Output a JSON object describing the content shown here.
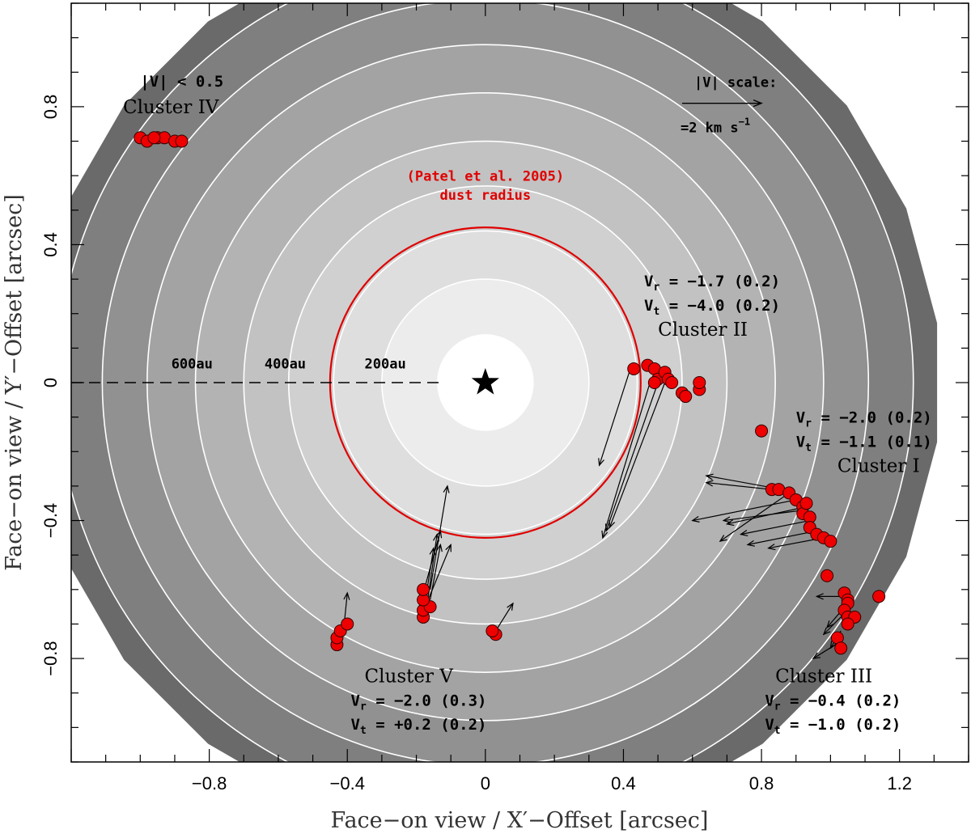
{
  "chart_data": {
    "type": "scatter",
    "xlabel": "Face−on view / X′−Offset  [arcsec]",
    "ylabel": "Face−on view / Y′−Offset  [arcsec]",
    "xlim": [
      -1.2,
      1.4
    ],
    "ylim": [
      1.1,
      -1.1
    ],
    "y_axis_inverted": true,
    "x_ticks": [
      -0.8,
      -0.4,
      0,
      0.4,
      0.8,
      1.2
    ],
    "x_tick_labels": [
      "−0.8",
      "−0.4",
      "0",
      "0.4",
      "0.8",
      "1.2"
    ],
    "y_ticks": [
      -0.8,
      -0.4,
      0,
      0.4,
      0.8
    ],
    "y_tick_labels": [
      "−0.8",
      "−0.4",
      "0",
      "0.4",
      "0.8"
    ],
    "star": {
      "x": 0,
      "y": 0
    },
    "background_rings": {
      "radii": [
        0.14,
        0.3,
        0.44,
        0.57,
        0.7,
        0.84,
        0.98,
        1.11,
        1.24
      ],
      "polygon_radius": 1.32,
      "fills": [
        "#ffffff",
        "#ececec",
        "#dedede",
        "#d0d0d0",
        "#c2c2c2",
        "#b3b3b3",
        "#a3a3a3",
        "#919191",
        "#7f7f7f",
        "#6a6a6a"
      ]
    },
    "dust_ring": {
      "radius": 0.45,
      "color": "#e00000",
      "label_line1": "dust radius",
      "label_line2": "(Patel et al. 2005)"
    },
    "au_marker": {
      "line_from_x": -1.2,
      "line_to_x": -0.13,
      "labels": [
        {
          "text": "600au",
          "x": -0.85,
          "y": 0.055
        },
        {
          "text": "400au",
          "x": -0.58,
          "y": 0.055
        },
        {
          "text": "200au",
          "x": -0.29,
          "y": 0.055
        }
      ]
    },
    "points": [
      [
        0.43,
        0.04
      ],
      [
        0.47,
        0.05
      ],
      [
        0.49,
        0.04
      ],
      [
        0.5,
        0.01
      ],
      [
        0.52,
        0.03
      ],
      [
        0.53,
        0.01
      ],
      [
        0.54,
        0.0
      ],
      [
        0.57,
        -0.03
      ],
      [
        0.58,
        -0.04
      ],
      [
        0.62,
        -0.02
      ],
      [
        0.62,
        0.0
      ],
      [
        0.49,
        0.0
      ],
      [
        0.83,
        -0.31
      ],
      [
        0.85,
        -0.31
      ],
      [
        0.88,
        -0.32
      ],
      [
        0.9,
        -0.34
      ],
      [
        0.92,
        -0.36
      ],
      [
        0.92,
        -0.38
      ],
      [
        0.94,
        -0.39
      ],
      [
        0.94,
        -0.42
      ],
      [
        0.96,
        -0.44
      ],
      [
        0.98,
        -0.45
      ],
      [
        1.0,
        -0.46
      ],
      [
        0.93,
        -0.35
      ],
      [
        0.8,
        -0.14
      ],
      [
        0.99,
        -0.56
      ],
      [
        1.04,
        -0.61
      ],
      [
        1.05,
        -0.63
      ],
      [
        1.05,
        -0.64
      ],
      [
        1.04,
        -0.66
      ],
      [
        1.05,
        -0.68
      ],
      [
        1.07,
        -0.68
      ],
      [
        1.05,
        -0.7
      ],
      [
        1.02,
        -0.74
      ],
      [
        1.03,
        -0.77
      ],
      [
        1.14,
        -0.62
      ],
      [
        -0.43,
        -0.76
      ],
      [
        -0.43,
        -0.74
      ],
      [
        -0.42,
        -0.72
      ],
      [
        -0.4,
        -0.7
      ],
      [
        -0.18,
        -0.68
      ],
      [
        -0.18,
        -0.66
      ],
      [
        -0.16,
        -0.65
      ],
      [
        -0.18,
        -0.63
      ],
      [
        -0.18,
        -0.6
      ],
      [
        0.03,
        -0.73
      ],
      [
        0.02,
        -0.72
      ],
      [
        -1.0,
        0.71
      ],
      [
        -0.98,
        0.7
      ],
      [
        -0.95,
        0.71
      ],
      [
        -0.93,
        0.71
      ],
      [
        -0.9,
        0.7
      ],
      [
        -0.88,
        0.7
      ],
      [
        -0.96,
        0.71
      ]
    ],
    "vectors": [
      [
        0.42,
        0.04,
        0.33,
        -0.24
      ],
      [
        0.48,
        0.01,
        0.34,
        -0.45
      ],
      [
        0.5,
        0.0,
        0.35,
        -0.43
      ],
      [
        0.52,
        0.0,
        0.36,
        -0.42
      ],
      [
        0.83,
        -0.31,
        0.64,
        -0.29
      ],
      [
        0.86,
        -0.31,
        0.64,
        -0.27
      ],
      [
        0.9,
        -0.34,
        0.6,
        -0.4
      ],
      [
        0.92,
        -0.37,
        0.69,
        -0.4
      ],
      [
        0.94,
        -0.4,
        0.74,
        -0.44
      ],
      [
        0.96,
        -0.43,
        0.76,
        -0.47
      ],
      [
        0.98,
        -0.45,
        0.82,
        -0.48
      ],
      [
        0.93,
        -0.36,
        0.7,
        -0.41
      ],
      [
        0.88,
        -0.32,
        0.68,
        -0.46
      ],
      [
        1.04,
        -0.62,
        0.96,
        -0.62
      ],
      [
        1.04,
        -0.67,
        0.98,
        -0.73
      ],
      [
        1.03,
        -0.72,
        1.0,
        -0.77
      ],
      [
        1.03,
        -0.75,
        0.95,
        -0.8
      ],
      [
        1.05,
        -0.64,
        0.99,
        -0.71
      ],
      [
        -0.41,
        -0.71,
        -0.4,
        -0.61
      ],
      [
        -0.18,
        -0.67,
        -0.15,
        -0.48
      ],
      [
        -0.17,
        -0.65,
        -0.14,
        -0.44
      ],
      [
        -0.18,
        -0.61,
        -0.13,
        -0.43
      ],
      [
        -0.17,
        -0.64,
        -0.1,
        -0.47
      ],
      [
        -0.16,
        -0.6,
        -0.11,
        -0.3
      ],
      [
        -0.16,
        -0.63,
        -0.13,
        -0.47
      ],
      [
        0.03,
        -0.72,
        0.08,
        -0.64
      ]
    ],
    "clusters": [
      {
        "name": "Cluster I",
        "line1": "V",
        "sub1": "t",
        "val1": " = −1.1 (0.1)",
        "line2": "V",
        "sub2": "r",
        "val2": " = −2.0 (0.2)",
        "name_x": 1.02,
        "name_y": -0.24,
        "vel_x": 0.9,
        "vel1_y": -0.17,
        "vel2_y": -0.1
      },
      {
        "name": "Cluster II",
        "line1": "V",
        "sub1": "t",
        "val1": " = −4.0 (0.2)",
        "line2": "V",
        "sub2": "r",
        "val2": " = −1.7 (0.2)",
        "name_x": 0.5,
        "name_y": 0.155,
        "vel_x": 0.46,
        "vel1_y": 0.225,
        "vel2_y": 0.295
      },
      {
        "name": "Cluster III",
        "line1": "V",
        "sub1": "t",
        "val1": " = −1.0 (0.2)",
        "line2": "V",
        "sub2": "r",
        "val2": " = −0.4 (0.2)",
        "name_x": 0.84,
        "name_y": -0.85,
        "vel_x": 0.81,
        "vel1_y": -0.99,
        "vel2_y": -0.92
      },
      {
        "name": "Cluster IV",
        "line1": "|V| < 0.5",
        "sub1": "",
        "val1": "",
        "line2": "",
        "sub2": "",
        "val2": "",
        "name_x": -1.05,
        "name_y": 0.8,
        "vel_x": -1.0,
        "vel1_y": 0.875,
        "vel2_y": null
      },
      {
        "name": "Cluster V",
        "line1": "V",
        "sub1": "t",
        "val1": " = +0.2 (0.2)",
        "line2": "V",
        "sub2": "r",
        "val2": " = −2.0 (0.3)",
        "name_x": -0.35,
        "name_y": -0.85,
        "vel_x": -0.39,
        "vel1_y": -0.99,
        "vel2_y": -0.92
      }
    ],
    "scale_bar": {
      "label_top": "|V| scale:",
      "label_bottom": "=2 km s",
      "label_sup": "−1",
      "x0": 0.57,
      "x1": 0.8,
      "y": 0.81
    },
    "colors": {
      "point_fill": "#ee0000",
      "point_stroke": "#330000",
      "ring_line": "#ffffff",
      "dust": "#e00000"
    }
  }
}
